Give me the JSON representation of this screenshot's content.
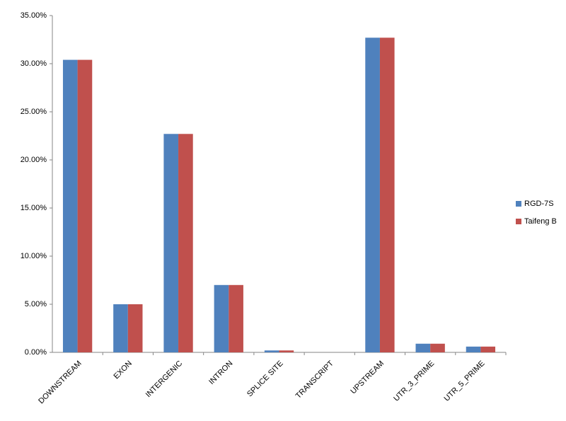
{
  "chart_data": {
    "type": "bar",
    "categories": [
      "DOWNSTREAM",
      "EXON",
      "INTERGENIC",
      "INTRON",
      "SPLICE SITE",
      "TRANSCRIPT",
      "UPSTREAM",
      "UTR_3_PRIME",
      "UTR_5_PRIME"
    ],
    "series": [
      {
        "name": "RGD-7S",
        "color": "#4f81bd",
        "values": [
          30.4,
          5.0,
          22.7,
          7.0,
          0.2,
          0,
          32.7,
          0.9,
          0.6
        ]
      },
      {
        "name": "Taifeng B",
        "color": "#c0504d",
        "values": [
          30.4,
          5.0,
          22.7,
          7.0,
          0.2,
          0,
          32.7,
          0.9,
          0.6
        ]
      }
    ],
    "ylim": [
      0,
      35
    ],
    "yticks": [
      {
        "value": 0,
        "label": "0.00%"
      },
      {
        "value": 5,
        "label": "5.00%"
      },
      {
        "value": 10,
        "label": "10.00%"
      },
      {
        "value": 15,
        "label": "15.00%"
      },
      {
        "value": 20,
        "label": "20.00%"
      },
      {
        "value": 25,
        "label": "25.00%"
      },
      {
        "value": 30,
        "label": "30.00%"
      },
      {
        "value": 35,
        "label": "35.00%"
      }
    ],
    "grid": false,
    "legend": "right"
  }
}
